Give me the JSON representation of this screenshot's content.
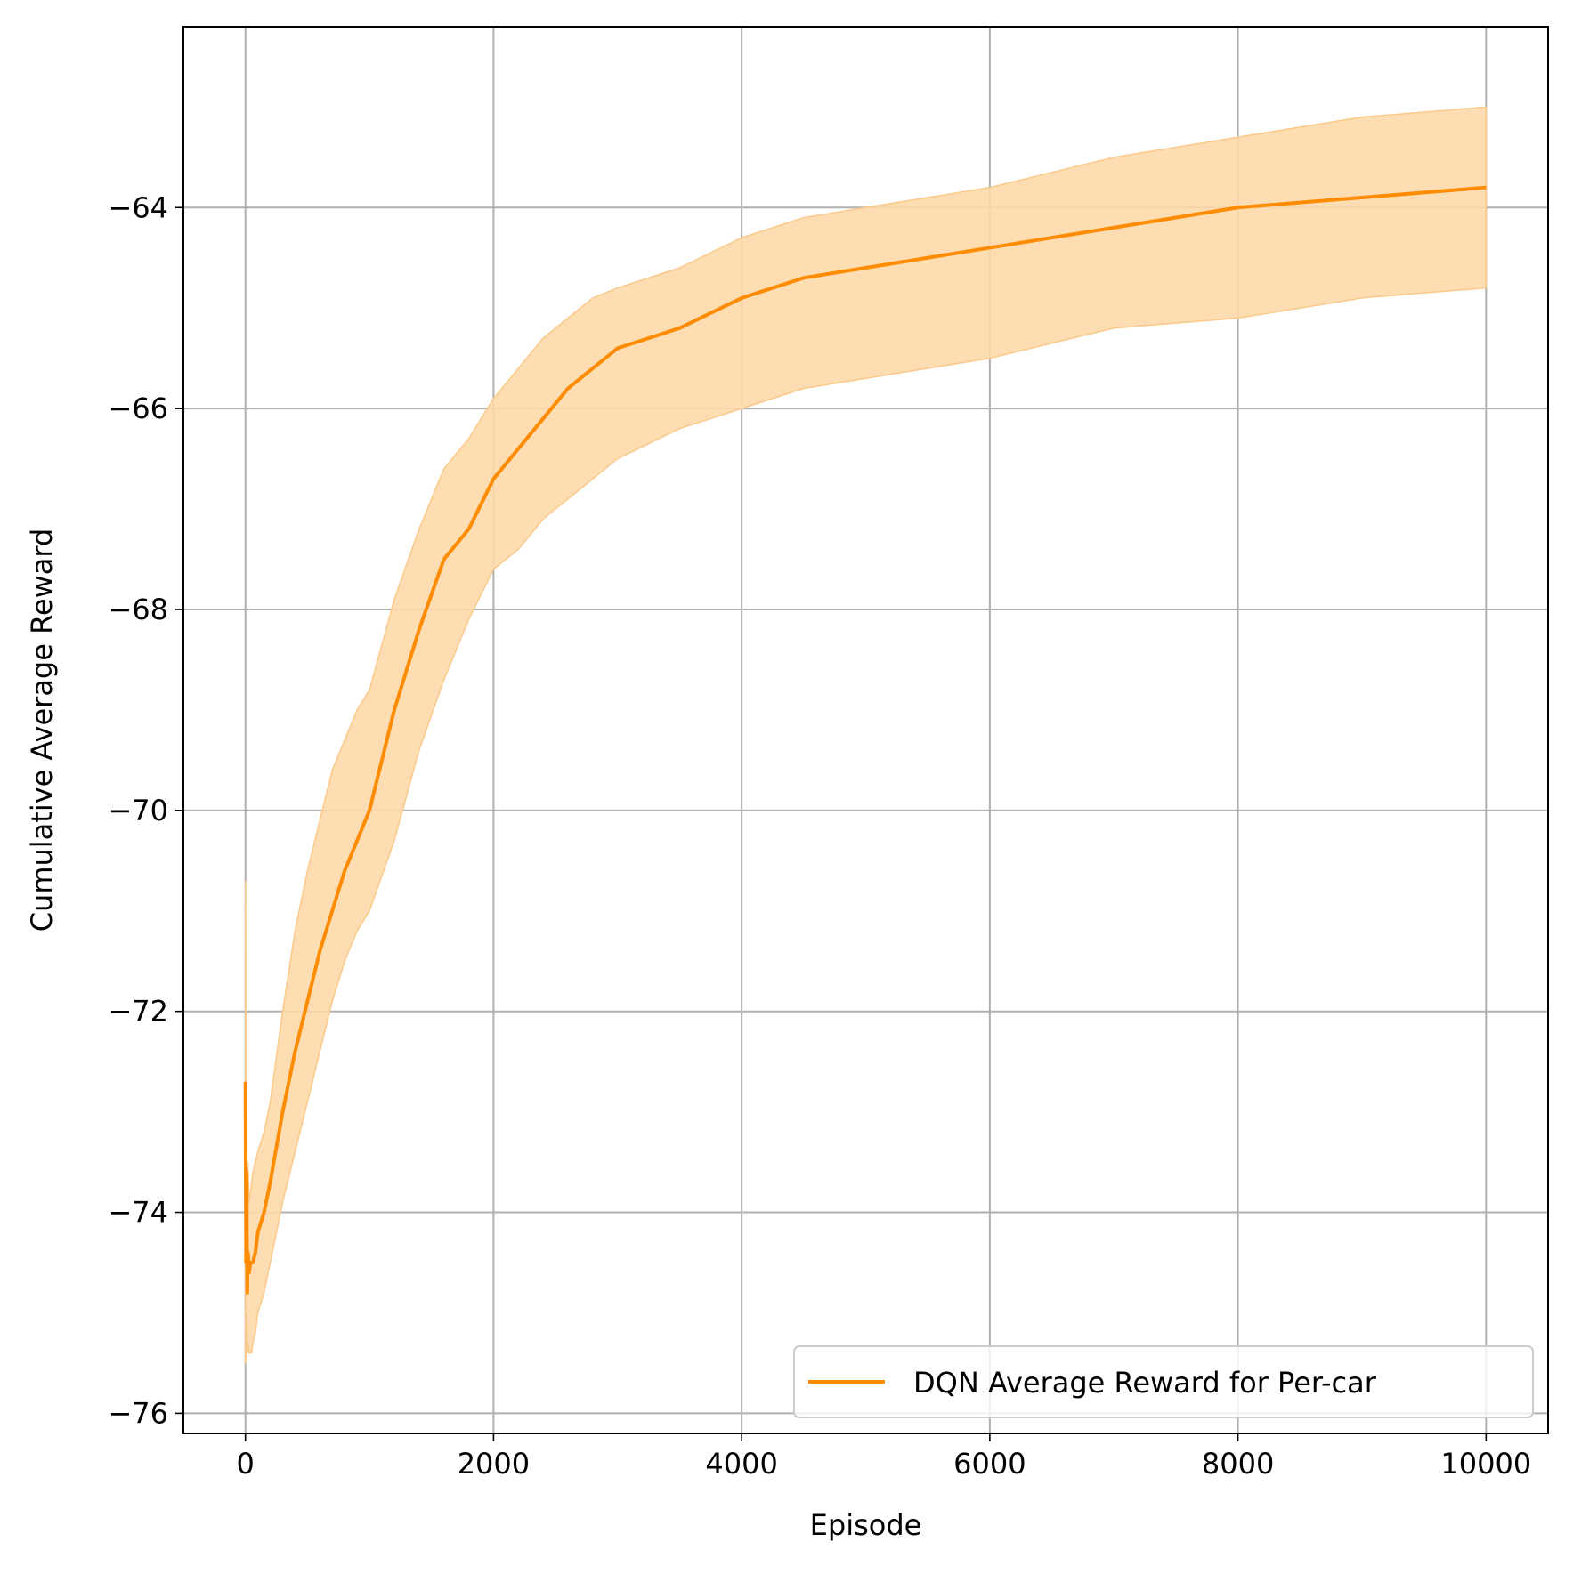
{
  "chart_data": {
    "type": "line",
    "xlabel": "Episode",
    "ylabel": "Cumulative Average Reward",
    "xlim": [
      -500,
      10500
    ],
    "ylim": [
      -76.2,
      -62.2
    ],
    "x_ticks": [
      0,
      2000,
      4000,
      6000,
      8000,
      10000
    ],
    "x_tick_labels": [
      "0",
      "2000",
      "4000",
      "6000",
      "8000",
      "10000"
    ],
    "y_ticks": [
      -76,
      -74,
      -72,
      -70,
      -68,
      -66,
      -64
    ],
    "y_tick_labels": [
      "−76",
      "−74",
      "−72",
      "−70",
      "−68",
      "−66",
      "−64"
    ],
    "grid": true,
    "legend_position": "lower-right",
    "series": [
      {
        "name": "DQN Average Reward for Per-car",
        "color": "#ff8c00",
        "band_color": "#fdd9a9",
        "x": [
          0,
          5,
          10,
          15,
          20,
          30,
          40,
          50,
          60,
          80,
          100,
          150,
          200,
          300,
          400,
          500,
          600,
          700,
          800,
          900,
          1000,
          1200,
          1400,
          1600,
          1800,
          2000,
          2200,
          2400,
          2600,
          2800,
          3000,
          3500,
          4000,
          4500,
          5000,
          5500,
          6000,
          7000,
          8000,
          9000,
          10000
        ],
        "values": [
          -72.7,
          -74.5,
          -73.6,
          -74.8,
          -74.4,
          -74.6,
          -74.5,
          -74.5,
          -74.5,
          -74.4,
          -74.2,
          -74.0,
          -73.7,
          -73.0,
          -72.4,
          -71.9,
          -71.4,
          -71.0,
          -70.6,
          -70.3,
          -70.0,
          -69.0,
          -68.2,
          -67.5,
          -67.2,
          -66.7,
          -66.4,
          -66.1,
          -65.8,
          -65.6,
          -65.4,
          -65.2,
          -64.9,
          -64.7,
          -64.6,
          -64.5,
          -64.4,
          -64.2,
          -64.0,
          -63.9,
          -63.8
        ],
        "upper": [
          -70.7,
          -73.5,
          -72.8,
          -73.9,
          -73.5,
          -73.9,
          -73.8,
          -73.7,
          -73.6,
          -73.5,
          -73.4,
          -73.2,
          -72.9,
          -72.0,
          -71.2,
          -70.6,
          -70.1,
          -69.6,
          -69.3,
          -69.0,
          -68.8,
          -67.9,
          -67.2,
          -66.6,
          -66.3,
          -65.9,
          -65.6,
          -65.3,
          -65.1,
          -64.9,
          -64.8,
          -64.6,
          -64.3,
          -64.1,
          -64.0,
          -63.9,
          -63.8,
          -63.5,
          -63.3,
          -63.1,
          -63.0
        ],
        "lower": [
          -75.5,
          -75.5,
          -75.0,
          -75.4,
          -75.3,
          -75.4,
          -75.4,
          -75.4,
          -75.3,
          -75.2,
          -75.0,
          -74.8,
          -74.5,
          -73.9,
          -73.4,
          -72.9,
          -72.4,
          -71.9,
          -71.5,
          -71.2,
          -71.0,
          -70.3,
          -69.4,
          -68.7,
          -68.1,
          -67.6,
          -67.4,
          -67.1,
          -66.9,
          -66.7,
          -66.5,
          -66.2,
          -66.0,
          -65.8,
          -65.7,
          -65.6,
          -65.5,
          -65.2,
          -65.1,
          -64.9,
          -64.8
        ]
      }
    ]
  }
}
